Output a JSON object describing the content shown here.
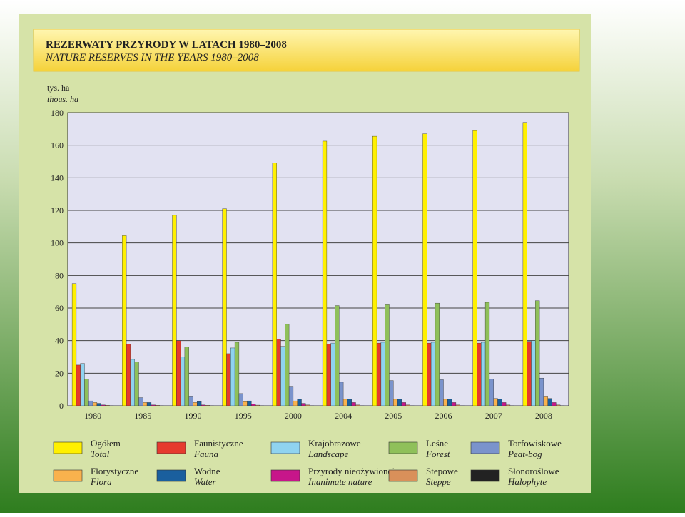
{
  "chart_data": {
    "type": "bar",
    "title": "REZERWATY PRZYRODY W LATACH 1980–2008",
    "subtitle": "NATURE RESERVES IN THE YEARS 1980–2008",
    "y_label": "tys. ha",
    "y_label_en": "thous. ha",
    "categories": [
      "1980",
      "1985",
      "1990",
      "1995",
      "2000",
      "2004",
      "2005",
      "2006",
      "2007",
      "2008"
    ],
    "ylim": [
      0,
      180
    ],
    "yticks": [
      0,
      20,
      40,
      60,
      80,
      100,
      120,
      140,
      160,
      180
    ],
    "grid": true,
    "series": [
      {
        "name": "Ogółem",
        "name_en": "Total",
        "color": "#fff000",
        "values": [
          75,
          104.5,
          117,
          121,
          149,
          162.5,
          165.5,
          167,
          169,
          174
        ]
      },
      {
        "name": "Faunistyczne",
        "name_en": "Fauna",
        "color": "#e63a2e",
        "values": [
          25,
          38,
          40,
          32,
          41,
          38,
          38.5,
          38.5,
          38.5,
          39.5
        ]
      },
      {
        "name": "Krajobrazowe",
        "name_en": "Landscape",
        "color": "#8fd3f0",
        "values": [
          26,
          28.5,
          30,
          35.5,
          36.5,
          38.5,
          39,
          39,
          39,
          40
        ]
      },
      {
        "name": "Leśne",
        "name_en": "Forest",
        "color": "#8fc05a",
        "values": [
          16.5,
          27,
          36,
          39,
          50,
          61.5,
          62,
          63,
          63.5,
          64.5
        ]
      },
      {
        "name": "Torfowiskowe",
        "name_en": "Peat-bog",
        "color": "#7a93cc",
        "values": [
          3,
          5,
          5.5,
          7.5,
          12,
          14.5,
          15.5,
          16,
          16.5,
          17
        ]
      },
      {
        "name": "Florystyczne",
        "name_en": "Flora",
        "color": "#f9b24d",
        "values": [
          2,
          2,
          2,
          2.5,
          3,
          4,
          4,
          4,
          4.5,
          5.5
        ]
      },
      {
        "name": "Wodne",
        "name_en": "Water",
        "color": "#1a5f9e",
        "values": [
          1.5,
          2,
          2.5,
          3,
          4,
          4,
          4,
          4,
          4,
          4.5
        ]
      },
      {
        "name": "Przyrody nieożywionej",
        "name_en": "Inanimate nature",
        "color": "#c7168a",
        "values": [
          0.5,
          0.5,
          0.5,
          1,
          1.5,
          2,
          2,
          2,
          2,
          2
        ]
      },
      {
        "name": "Stepowe",
        "name_en": "Steppe",
        "color": "#d9905a",
        "values": [
          0.3,
          0.3,
          0.3,
          0.4,
          0.5,
          0.5,
          0.5,
          0.5,
          0.5,
          0.5
        ]
      },
      {
        "name": "Słonoroślowe",
        "name_en": "Halophyte",
        "color": "#222222",
        "values": [
          0.1,
          0.1,
          0.1,
          0.1,
          0.1,
          0.1,
          0.1,
          0.1,
          0.1,
          0.1
        ]
      }
    ]
  }
}
